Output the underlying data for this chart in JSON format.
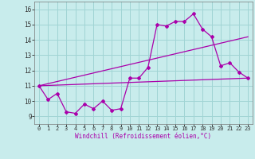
{
  "title": "",
  "xlabel": "Windchill (Refroidissement éolien,°C)",
  "ylabel": "",
  "bg_color": "#c8ecec",
  "grid_color": "#a0d4d4",
  "line_color": "#aa00aa",
  "xlim": [
    -0.5,
    23.5
  ],
  "ylim": [
    8.5,
    16.5
  ],
  "xticks": [
    0,
    1,
    2,
    3,
    4,
    5,
    6,
    7,
    8,
    9,
    10,
    11,
    12,
    13,
    14,
    15,
    16,
    17,
    18,
    19,
    20,
    21,
    22,
    23
  ],
  "yticks": [
    9,
    10,
    11,
    12,
    13,
    14,
    15,
    16
  ],
  "series1_x": [
    0,
    1,
    2,
    3,
    4,
    5,
    6,
    7,
    8,
    9,
    10,
    11,
    12,
    13,
    14,
    15,
    16,
    17,
    18,
    19,
    20,
    21,
    22,
    23
  ],
  "series1_y": [
    11.0,
    10.1,
    10.5,
    9.3,
    9.2,
    9.8,
    9.5,
    10.0,
    9.4,
    9.5,
    11.5,
    11.5,
    12.2,
    15.0,
    14.9,
    15.2,
    15.2,
    15.7,
    14.7,
    14.2,
    12.3,
    12.5,
    11.9,
    11.5
  ],
  "series2_x": [
    0,
    23
  ],
  "series2_y": [
    11.0,
    11.5
  ],
  "series3_x": [
    0,
    23
  ],
  "series3_y": [
    11.0,
    14.2
  ]
}
